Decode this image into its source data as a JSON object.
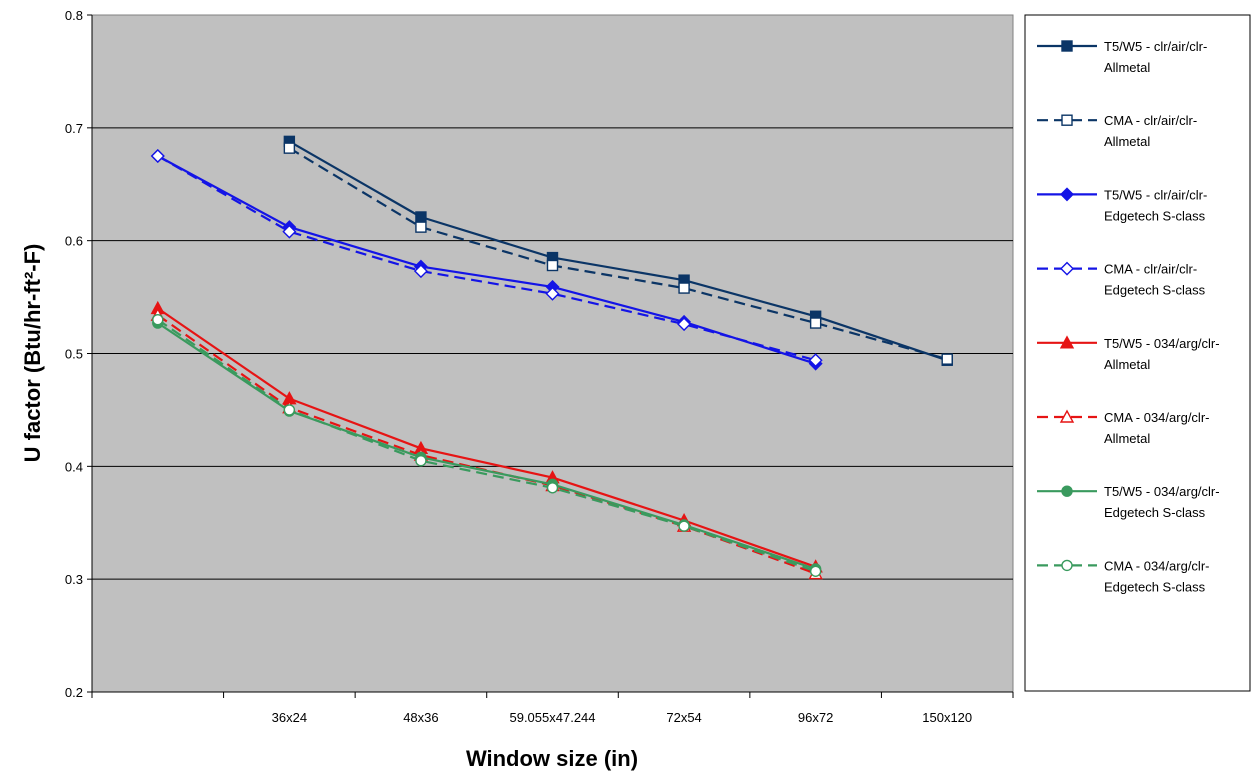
{
  "chart_data": {
    "type": "line",
    "title": "",
    "xlabel": "Window size (in)",
    "ylabel": "U factor (Btu/hr-ft²-F)",
    "ylim": [
      0.2,
      0.8
    ],
    "yticks": [
      "0.2",
      "0.3",
      "0.4",
      "0.5",
      "0.6",
      "0.7",
      "0.8"
    ],
    "categories": [
      "",
      "36x24",
      "48x36",
      "59.055x47.244",
      "72x54",
      "96x72",
      "150x120"
    ],
    "grid": true,
    "legend_position": "right",
    "series": [
      {
        "name": "T5/W5 - clr/air/clr-Allmetal",
        "legend_lines": [
          "T5/W5 - clr/air/clr-",
          "Allmetal"
        ],
        "color": "#0B3566",
        "marker": "square",
        "filled": true,
        "dashed": false,
        "values": [
          null,
          0.688,
          0.621,
          0.585,
          0.565,
          0.533,
          0.494
        ]
      },
      {
        "name": "CMA - clr/air/clr-Allmetal",
        "legend_lines": [
          "CMA - clr/air/clr-",
          "Allmetal"
        ],
        "color": "#0B3566",
        "marker": "square",
        "filled": false,
        "dashed": true,
        "values": [
          null,
          0.682,
          0.612,
          0.578,
          0.558,
          0.527,
          0.495
        ]
      },
      {
        "name": "T5/W5 - clr/air/clr-Edgetech S-class",
        "legend_lines": [
          "T5/W5 - clr/air/clr-",
          "Edgetech S-class"
        ],
        "color": "#1414E6",
        "marker": "diamond",
        "filled": true,
        "dashed": false,
        "values": [
          0.675,
          0.612,
          0.577,
          0.559,
          0.528,
          0.491,
          null
        ]
      },
      {
        "name": "CMA - clr/air/clr-Edgetech S-class",
        "legend_lines": [
          "CMA - clr/air/clr-",
          "Edgetech S-class"
        ],
        "color": "#1414E6",
        "marker": "diamond",
        "filled": false,
        "dashed": true,
        "values": [
          0.675,
          0.608,
          0.573,
          0.553,
          0.526,
          0.494,
          null
        ]
      },
      {
        "name": "T5/W5 - 034/arg/clr-Allmetal",
        "legend_lines": [
          "T5/W5 - 034/arg/clr-",
          "Allmetal"
        ],
        "color": "#E61414",
        "marker": "triangle",
        "filled": true,
        "dashed": false,
        "values": [
          0.54,
          0.46,
          0.416,
          0.39,
          0.352,
          0.311,
          null
        ]
      },
      {
        "name": "CMA - 034/arg/clr-Allmetal",
        "legend_lines": [
          "CMA - 034/arg/clr-",
          "Allmetal"
        ],
        "color": "#E61414",
        "marker": "triangle",
        "filled": false,
        "dashed": true,
        "values": [
          0.534,
          0.452,
          0.41,
          0.383,
          0.347,
          0.305,
          null
        ]
      },
      {
        "name": "T5/W5 - 034/arg/clr-Edgetech S-class",
        "legend_lines": [
          "T5/W5 - 034/arg/clr-",
          "Edgetech S-class"
        ],
        "color": "#3A9A5E",
        "marker": "circle",
        "filled": true,
        "dashed": false,
        "values": [
          0.527,
          0.449,
          0.408,
          0.384,
          0.348,
          0.309,
          null
        ]
      },
      {
        "name": "CMA - 034/arg/clr-Edgetech S-class",
        "legend_lines": [
          "CMA - 034/arg/clr-",
          "Edgetech S-class"
        ],
        "color": "#3A9A5E",
        "marker": "circle",
        "filled": false,
        "dashed": true,
        "values": [
          0.53,
          0.45,
          0.405,
          0.381,
          0.347,
          0.307,
          null
        ]
      }
    ]
  }
}
